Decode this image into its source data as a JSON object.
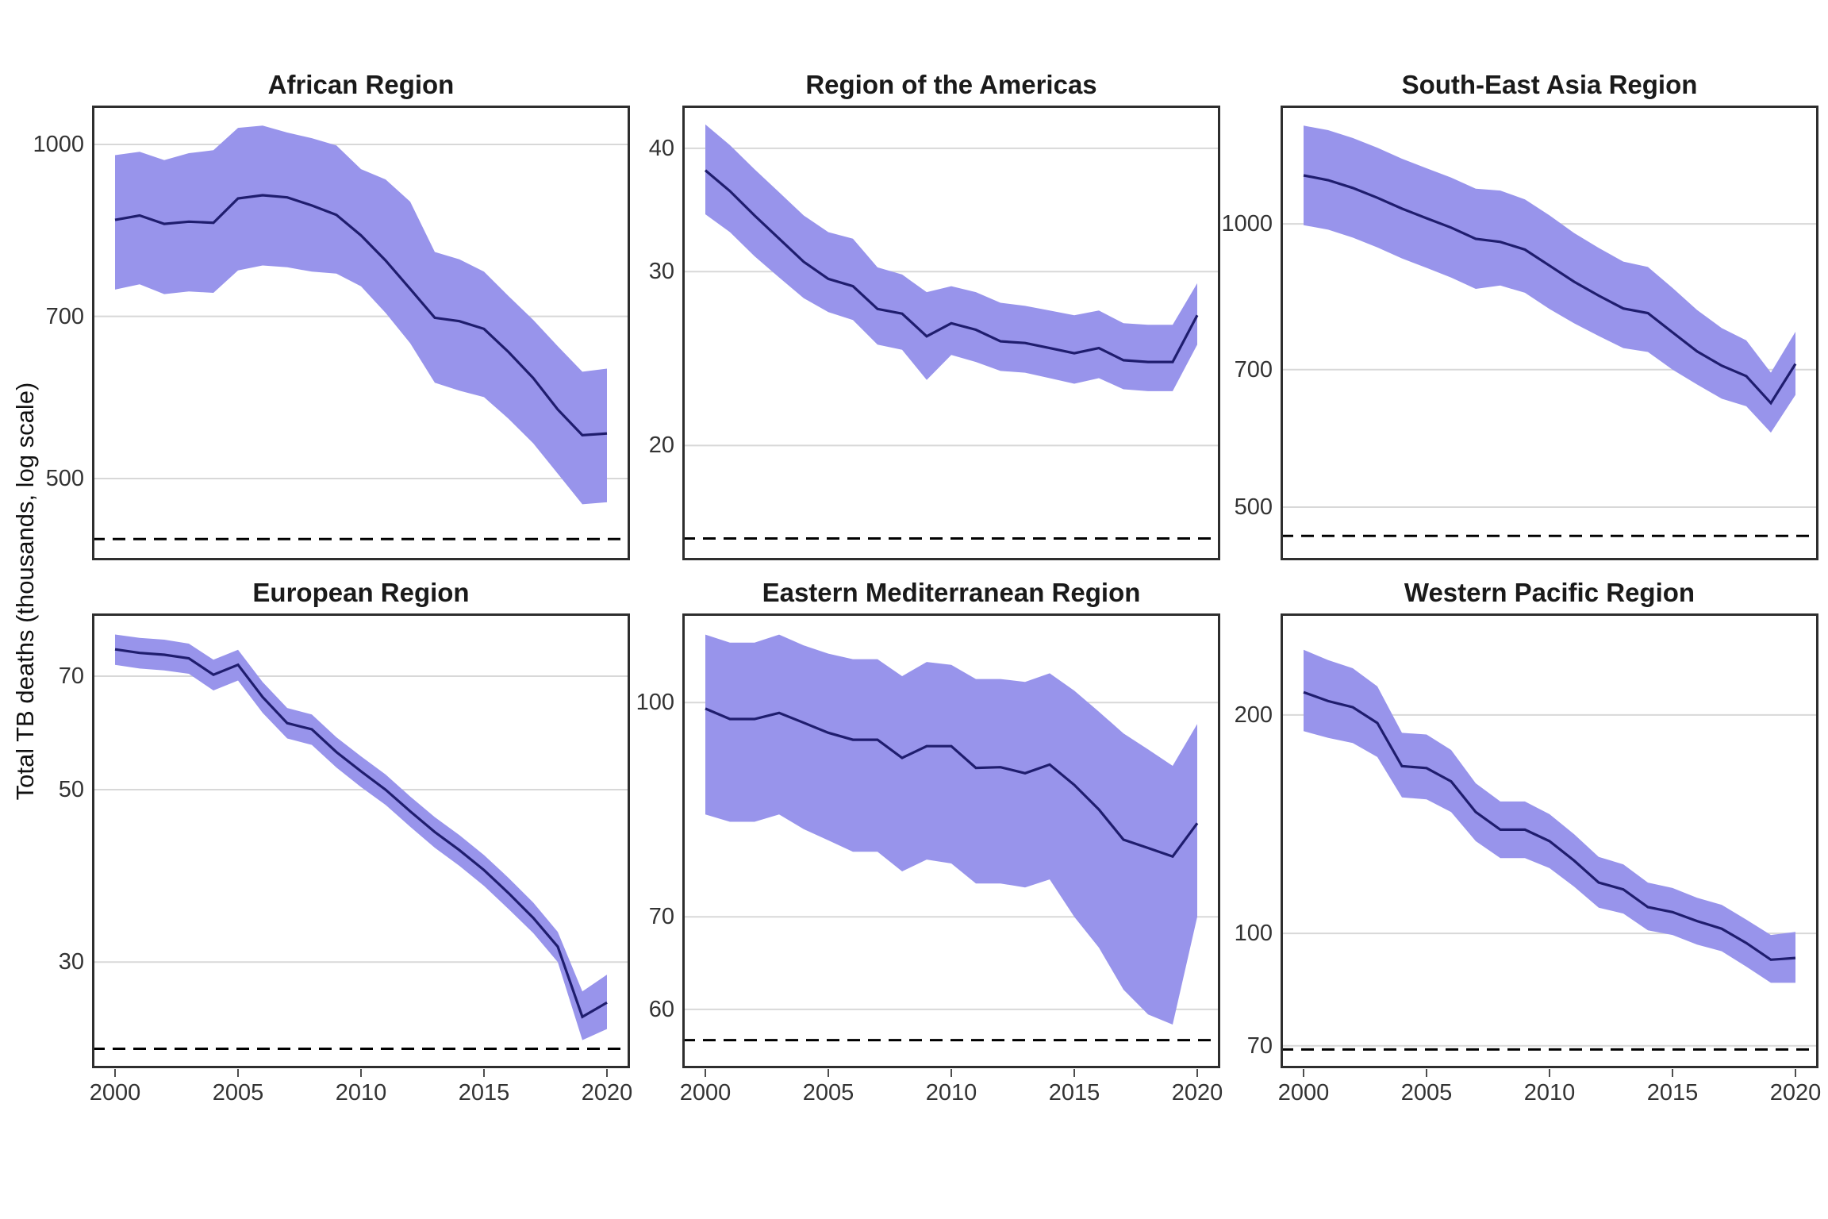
{
  "figure": {
    "ylabel": "Total TB deaths (thousands, log scale)",
    "years": [
      2000,
      2001,
      2002,
      2003,
      2004,
      2005,
      2006,
      2007,
      2008,
      2009,
      2010,
      2011,
      2012,
      2013,
      2014,
      2015,
      2016,
      2017,
      2018,
      2019,
      2020
    ],
    "x_tick_years": [
      2000,
      2005,
      2010,
      2015,
      2020
    ],
    "x_tick_labels": [
      "2000",
      "2005",
      "2010",
      "2015",
      "2020"
    ],
    "colors": {
      "background": "#FFFFFF",
      "ribbon": "#9894EB",
      "median_line": "#1F1D6E",
      "gridline": "#D8D8D8",
      "panel_border": "#2E2E2E",
      "dashed_line": "#000000",
      "text": "#1A1A1A",
      "tick_text": "#333333"
    }
  },
  "chart_data": [
    {
      "type": "line",
      "title": "African Region",
      "ylabel": "Total TB deaths (thousands, log scale)",
      "y_ticks": [
        1000,
        700,
        500
      ],
      "ylim": [
        422,
        1084
      ],
      "dashed_target": 441,
      "median": [
        855,
        863,
        848,
        852,
        850,
        894,
        900,
        896,
        881,
        864,
        828,
        786,
        741,
        698,
        693,
        682,
        650,
        616,
        577,
        547,
        549
      ],
      "lower": [
        740,
        748,
        733,
        737,
        735,
        770,
        778,
        775,
        768,
        765,
        745,
        705,
        662,
        610,
        600,
        592,
        566,
        538,
        505,
        474,
        476
      ],
      "upper": [
        978,
        985,
        968,
        982,
        988,
        1035,
        1040,
        1025,
        1013,
        998,
        950,
        930,
        888,
        800,
        788,
        768,
        730,
        695,
        658,
        624,
        628
      ]
    },
    {
      "type": "line",
      "title": "Region of the Americas",
      "ylabel": "Total TB deaths (thousands, log scale)",
      "y_ticks": [
        40,
        30,
        20
      ],
      "ylim": [
        15.3,
        44.2
      ],
      "dashed_target": 16.1,
      "median": [
        38,
        36.2,
        34.2,
        32.4,
        30.7,
        29.5,
        29,
        27.5,
        27.2,
        25.8,
        26.6,
        26.2,
        25.5,
        25.4,
        25.1,
        24.8,
        25.1,
        24.4,
        24.3,
        24.3,
        27.1
      ],
      "lower": [
        34.3,
        32.9,
        31.1,
        29.6,
        28.2,
        27.3,
        26.8,
        25.3,
        25,
        23.3,
        24.7,
        24.3,
        23.8,
        23.7,
        23.4,
        23.1,
        23.4,
        22.8,
        22.7,
        22.7,
        25.3
      ],
      "upper": [
        42.3,
        40.3,
        38.1,
        36.1,
        34.2,
        32.9,
        32.4,
        30.3,
        29.8,
        28.6,
        29,
        28.6,
        27.9,
        27.7,
        27.4,
        27.1,
        27.4,
        26.6,
        26.5,
        26.5,
        29.2
      ]
    },
    {
      "type": "line",
      "title": "South-East Asia Region",
      "ylabel": "Total TB deaths (thousands, log scale)",
      "y_ticks": [
        1000,
        700,
        500
      ],
      "ylim": [
        439,
        1336
      ],
      "dashed_target": 466,
      "median": [
        1126,
        1113,
        1092,
        1066,
        1038,
        1014,
        991,
        964,
        957,
        939,
        903,
        868,
        839,
        813,
        804,
        767,
        732,
        707,
        689,
        645,
        710
      ],
      "lower": [
        997,
        986,
        967,
        944,
        919,
        898,
        877,
        853,
        860,
        845,
        812,
        784,
        760,
        738,
        731,
        700,
        675,
        652,
        640,
        600,
        658
      ],
      "upper": [
        1272,
        1258,
        1234,
        1205,
        1173,
        1146,
        1120,
        1090,
        1085,
        1062,
        1021,
        978,
        943,
        912,
        900,
        855,
        810,
        775,
        752,
        695,
        768
      ]
    },
    {
      "type": "line",
      "title": "European Region",
      "ylabel": "Total TB deaths (thousands, log scale)",
      "y_ticks": [
        70,
        50,
        30
      ],
      "ylim": [
        21.9,
        84.3
      ],
      "dashed_target": 23.2,
      "median": [
        75.8,
        75,
        74.6,
        73.8,
        70.3,
        72.4,
        65.8,
        60.9,
        59.8,
        55.9,
        52.8,
        50,
        46.9,
        44.1,
        41.8,
        39.4,
        36.8,
        34.2,
        31.4,
        25.5,
        26.6
      ],
      "lower": [
        72.4,
        71.6,
        71.2,
        70.5,
        67.1,
        69.1,
        62.8,
        58.2,
        57.1,
        53.4,
        50.4,
        47.8,
        44.8,
        42.1,
        39.9,
        37.6,
        35.1,
        32.7,
        30,
        23.8,
        24.6
      ],
      "upper": [
        79.2,
        78.4,
        78,
        77.1,
        73.5,
        75.7,
        68.8,
        63.7,
        62.5,
        58.4,
        55.2,
        52.3,
        49,
        46.1,
        43.7,
        41.2,
        38.5,
        35.8,
        32.8,
        27.5,
        28.9
      ]
    },
    {
      "type": "line",
      "title": "Eastern Mediterranean Region",
      "ylabel": "Total TB deaths (thousands, log scale)",
      "y_ticks": [
        100,
        70,
        60
      ],
      "ylim": [
        54.4,
        116
      ],
      "dashed_target": 57,
      "median": [
        99,
        97.3,
        97.3,
        98.3,
        96.7,
        95.1,
        94,
        94,
        91.2,
        93,
        93,
        89.7,
        89.8,
        88.9,
        90.2,
        87.2,
        83.7,
        79.6,
        78.5,
        77.4,
        81.8
      ],
      "lower": [
        83,
        82,
        82,
        83,
        81,
        79.5,
        78,
        78,
        75.5,
        77,
        76.5,
        74,
        74,
        73.5,
        74.5,
        70,
        66.5,
        62,
        59.5,
        58.5,
        70
      ],
      "upper": [
        112,
        110.5,
        110.5,
        112,
        110,
        108.5,
        107.5,
        107.5,
        104.5,
        107,
        106.5,
        104,
        104,
        103.5,
        105,
        102,
        98.5,
        95,
        92.5,
        90,
        96.5
      ]
    },
    {
      "type": "line",
      "title": "Western Pacific Region",
      "ylabel": "Total TB deaths (thousands, log scale)",
      "y_ticks": [
        200,
        100,
        70
      ],
      "ylim": [
        65.2,
        276
      ],
      "dashed_target": 69.2,
      "median": [
        215,
        209,
        205,
        195,
        170,
        169,
        162,
        147,
        139,
        139,
        134,
        126,
        117.5,
        115,
        108.7,
        107,
        104,
        101.5,
        97,
        92,
        92.5
      ],
      "lower": [
        190,
        186,
        183,
        175,
        154,
        153,
        147,
        134,
        127,
        127,
        123,
        116,
        108.5,
        106.5,
        101,
        99.5,
        96.5,
        94.5,
        90,
        85.5,
        85.5
      ],
      "upper": [
        246,
        238,
        232,
        219,
        189,
        188,
        179,
        161,
        152,
        152,
        146,
        137,
        127.5,
        124.5,
        117.5,
        115.5,
        112,
        109.5,
        104.5,
        99.5,
        100.5
      ]
    }
  ]
}
